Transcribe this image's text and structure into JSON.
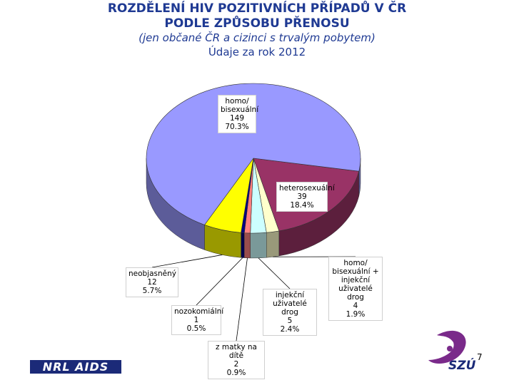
{
  "chart_data": {
    "type": "pie",
    "title": "ROZDĚLENÍ HIV POZITIVNÍCH PŘÍPADŮ V ČR\nPODLE ZPŮSOBU PŘENOSU",
    "subtitle": "(jen občané ČR a cizinci s trvalým pobytem)",
    "annotation": "Údaje za rok 2012",
    "categories": [
      "heterosexuální",
      "homo/\nbisexuální +\ninjekční\nuživatelé drog",
      "injekční\nuživatelé drog",
      "z matky na dítě",
      "nozokomiální",
      "neobjasněný",
      "homo/\nbisexuální"
    ],
    "values": [
      18.4,
      1.9,
      2.4,
      0.9,
      0.5,
      5.7,
      70.3
    ],
    "value_labels": [
      "18.4%",
      "1.9%",
      "2.4%",
      "0.9%",
      "0.5%",
      "5.7%",
      "70.3%"
    ],
    "counts": [
      39,
      4,
      5,
      2,
      1,
      12,
      149
    ],
    "colors": [
      "#993366",
      "#ffffcc",
      "#ccffff",
      "#ff8080",
      "#000080",
      "#ffff00",
      "#9999ff"
    ]
  },
  "footer": {
    "brand": "NRL AIDS",
    "logo": "SZÚ",
    "page": 7
  }
}
